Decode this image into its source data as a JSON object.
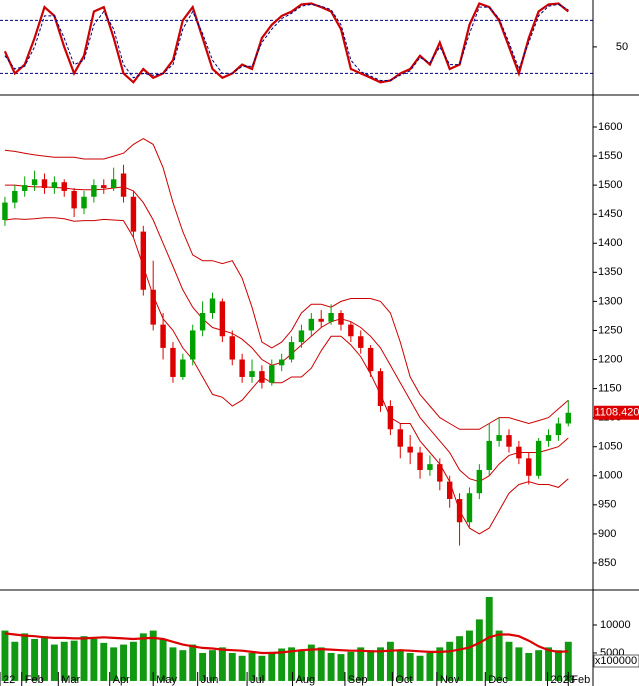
{
  "chart_data": [
    {
      "type": "line",
      "ylim": [
        -1,
        103
      ],
      "yticks": [
        50
      ],
      "hlines": [
        20,
        80
      ],
      "hline_color": "#000080",
      "series": [
        {
          "color": "#cc0000",
          "values": [
            45,
            20,
            30,
            60,
            95,
            85,
            50,
            20,
            40,
            90,
            95,
            60,
            20,
            10,
            25,
            15,
            20,
            35,
            80,
            95,
            60,
            25,
            15,
            20,
            30,
            25,
            60,
            75,
            85,
            90,
            98,
            99,
            95,
            90,
            70,
            25,
            20,
            15,
            10,
            12,
            20,
            25,
            40,
            30,
            55,
            25,
            30,
            75,
            99,
            95,
            80,
            50,
            20,
            60,
            90,
            98,
            99,
            90
          ]
        },
        {
          "color": "#000080",
          "dashed": true,
          "values": [
            40,
            25,
            28,
            50,
            85,
            85,
            60,
            30,
            35,
            75,
            90,
            70,
            30,
            15,
            20,
            18,
            20,
            30,
            70,
            90,
            65,
            35,
            20,
            20,
            28,
            28,
            55,
            70,
            82,
            88,
            96,
            98,
            96,
            92,
            75,
            35,
            22,
            17,
            12,
            12,
            18,
            23,
            38,
            32,
            50,
            30,
            30,
            65,
            95,
            95,
            82,
            55,
            25,
            55,
            85,
            96,
            98,
            92
          ]
        }
      ]
    },
    {
      "type": "candlestick",
      "ylim": [
        803.5,
        1651.6
      ],
      "yticks": [
        850,
        900,
        950,
        1000,
        1050,
        1100,
        1150,
        1200,
        1250,
        1300,
        1350,
        1400,
        1450,
        1500,
        1550,
        1600
      ],
      "up_color": "#00a000",
      "down_color": "#dd0000",
      "ohlc": [
        [
          1440,
          1480,
          1430,
          1470
        ],
        [
          1470,
          1500,
          1460,
          1490
        ],
        [
          1490,
          1515,
          1480,
          1500
        ],
        [
          1500,
          1525,
          1490,
          1510
        ],
        [
          1510,
          1520,
          1485,
          1495
        ],
        [
          1495,
          1515,
          1485,
          1505
        ],
        [
          1505,
          1510,
          1480,
          1490
        ],
        [
          1490,
          1495,
          1445,
          1460
        ],
        [
          1460,
          1490,
          1450,
          1480
        ],
        [
          1480,
          1510,
          1470,
          1500
        ],
        [
          1500,
          1510,
          1485,
          1495
        ],
        [
          1495,
          1530,
          1490,
          1510
        ],
        [
          1520,
          1535,
          1470,
          1480
        ],
        [
          1480,
          1490,
          1410,
          1420
        ],
        [
          1420,
          1430,
          1310,
          1320
        ],
        [
          1320,
          1370,
          1250,
          1260
        ],
        [
          1260,
          1280,
          1200,
          1220
        ],
        [
          1220,
          1230,
          1160,
          1170
        ],
        [
          1170,
          1210,
          1165,
          1200
        ],
        [
          1200,
          1260,
          1190,
          1250
        ],
        [
          1250,
          1300,
          1240,
          1280
        ],
        [
          1280,
          1315,
          1270,
          1305
        ],
        [
          1300,
          1305,
          1230,
          1240
        ],
        [
          1240,
          1250,
          1190,
          1200
        ],
        [
          1200,
          1210,
          1160,
          1170
        ],
        [
          1170,
          1200,
          1160,
          1180
        ],
        [
          1180,
          1190,
          1150,
          1160
        ],
        [
          1160,
          1200,
          1155,
          1190
        ],
        [
          1190,
          1210,
          1180,
          1200
        ],
        [
          1200,
          1240,
          1195,
          1230
        ],
        [
          1230,
          1260,
          1220,
          1250
        ],
        [
          1250,
          1280,
          1240,
          1270
        ],
        [
          1270,
          1285,
          1255,
          1265
        ],
        [
          1265,
          1295,
          1260,
          1280
        ],
        [
          1280,
          1285,
          1250,
          1260
        ],
        [
          1260,
          1265,
          1230,
          1240
        ],
        [
          1240,
          1250,
          1210,
          1220
        ],
        [
          1220,
          1225,
          1170,
          1180
        ],
        [
          1180,
          1185,
          1110,
          1120
        ],
        [
          1120,
          1130,
          1070,
          1080
        ],
        [
          1080,
          1090,
          1030,
          1050
        ],
        [
          1050,
          1070,
          1020,
          1040
        ],
        [
          1040,
          1050,
          995,
          1010
        ],
        [
          1010,
          1035,
          1000,
          1020
        ],
        [
          1020,
          1030,
          975,
          990
        ],
        [
          990,
          1000,
          945,
          960
        ],
        [
          960,
          970,
          880,
          920
        ],
        [
          920,
          980,
          910,
          970
        ],
        [
          970,
          1020,
          960,
          1010
        ],
        [
          1010,
          1090,
          1000,
          1060
        ],
        [
          1060,
          1100,
          1050,
          1070
        ],
        [
          1070,
          1080,
          1040,
          1050
        ],
        [
          1050,
          1060,
          1020,
          1030
        ],
        [
          1030,
          1040,
          985,
          1000
        ],
        [
          1000,
          1065,
          995,
          1060
        ],
        [
          1060,
          1080,
          1050,
          1070
        ],
        [
          1070,
          1100,
          1060,
          1090
        ],
        [
          1090,
          1130,
          1085,
          1108.42
        ]
      ],
      "bands": [
        {
          "color": "#cc0000",
          "values": [
            1560,
            1558,
            1555,
            1552,
            1550,
            1548,
            1548,
            1548,
            1545,
            1545,
            1545,
            1550,
            1555,
            1570,
            1580,
            1570,
            1530,
            1470,
            1420,
            1380,
            1370,
            1370,
            1365,
            1370,
            1340,
            1290,
            1230,
            1220,
            1230,
            1250,
            1280,
            1295,
            1295,
            1290,
            1300,
            1305,
            1305,
            1305,
            1300,
            1280,
            1230,
            1170,
            1140,
            1120,
            1100,
            1090,
            1080,
            1080,
            1080,
            1090,
            1100,
            1100,
            1095,
            1090,
            1095,
            1100,
            1115,
            1130
          ]
        },
        {
          "color": "#cc0000",
          "values": [
            1500,
            1500,
            1498,
            1497,
            1497,
            1496,
            1495,
            1493,
            1492,
            1492,
            1493,
            1495,
            1497,
            1490,
            1470,
            1440,
            1400,
            1360,
            1320,
            1290,
            1270,
            1255,
            1250,
            1245,
            1235,
            1220,
            1200,
            1190,
            1195,
            1210,
            1225,
            1240,
            1255,
            1265,
            1270,
            1265,
            1255,
            1240,
            1220,
            1190,
            1160,
            1130,
            1100,
            1080,
            1060,
            1040,
            1010,
            995,
            990,
            1000,
            1020,
            1035,
            1040,
            1040,
            1040,
            1045,
            1050,
            1065
          ]
        },
        {
          "color": "#cc0000",
          "values": [
            1440,
            1442,
            1441,
            1442,
            1444,
            1444,
            1442,
            1438,
            1439,
            1439,
            1441,
            1440,
            1439,
            1410,
            1360,
            1310,
            1270,
            1250,
            1220,
            1200,
            1170,
            1140,
            1135,
            1120,
            1130,
            1150,
            1170,
            1160,
            1160,
            1170,
            1170,
            1185,
            1215,
            1240,
            1240,
            1225,
            1205,
            1175,
            1140,
            1100,
            1090,
            1090,
            1060,
            1040,
            1020,
            990,
            940,
            910,
            900,
            910,
            940,
            970,
            985,
            990,
            985,
            985,
            980,
            995
          ]
        }
      ],
      "last_price": {
        "value": 1108.42,
        "label": "1108.420"
      },
      "last_color": "#dd0000"
    },
    {
      "type": "bar",
      "ylim": [
        -900,
        16070
      ],
      "yticks": [
        5000,
        10000
      ],
      "unit_label": "x100000",
      "color": "#119911",
      "values": [
        9000,
        7000,
        8500,
        7500,
        8000,
        6500,
        7000,
        7200,
        8000,
        7500,
        6800,
        6000,
        6500,
        7000,
        8500,
        9000,
        7500,
        6000,
        5500,
        6500,
        5000,
        5500,
        6000,
        5000,
        4500,
        5000,
        4500,
        5200,
        5800,
        6000,
        5500,
        6500,
        6000,
        5000,
        4800,
        5200,
        6000,
        5500,
        6000,
        7000,
        5500,
        5000,
        4500,
        5000,
        6000,
        7000,
        8000,
        9000,
        11000,
        15000,
        9000,
        7000,
        6000,
        5000,
        5500,
        6000,
        5500,
        7000
      ],
      "ma": {
        "color": "#dd0000",
        "values": [
          8500,
          8300,
          8100,
          8000,
          7800,
          7700,
          7700,
          7600,
          7600,
          7700,
          7800,
          7700,
          7600,
          7500,
          7600,
          7700,
          7500,
          7000,
          6500,
          6200,
          5900,
          5800,
          5600,
          5500,
          5400,
          5200,
          5000,
          5000,
          5100,
          5300,
          5500,
          5600,
          5700,
          5600,
          5500,
          5400,
          5400,
          5300,
          5300,
          5400,
          5500,
          5400,
          5300,
          5200,
          5200,
          5300,
          5600,
          6000,
          6800,
          7800,
          8300,
          8300,
          8000,
          7200,
          6200,
          5500,
          5200,
          5300
        ]
      },
      "xlim": [
        0,
        60
      ],
      "xticks": [
        {
          "value": 0,
          "label": "22"
        },
        {
          "value": 2.2,
          "label": "Feb"
        },
        {
          "value": 5.9,
          "label": "Mar"
        },
        {
          "value": 11.1,
          "label": "Apr"
        },
        {
          "value": 15.5,
          "label": "May"
        },
        {
          "value": 20,
          "label": "Jun"
        },
        {
          "value": 25,
          "label": "Jul"
        },
        {
          "value": 29.6,
          "label": "Aug"
        },
        {
          "value": 34.9,
          "label": "Sep"
        },
        {
          "value": 39.7,
          "label": "Oct"
        },
        {
          "value": 44.2,
          "label": "Nov"
        },
        {
          "value": 49.1,
          "label": "Dec"
        },
        {
          "value": 55.4,
          "label": "2023"
        },
        {
          "value": 57.5,
          "label": "Feb"
        }
      ]
    }
  ]
}
